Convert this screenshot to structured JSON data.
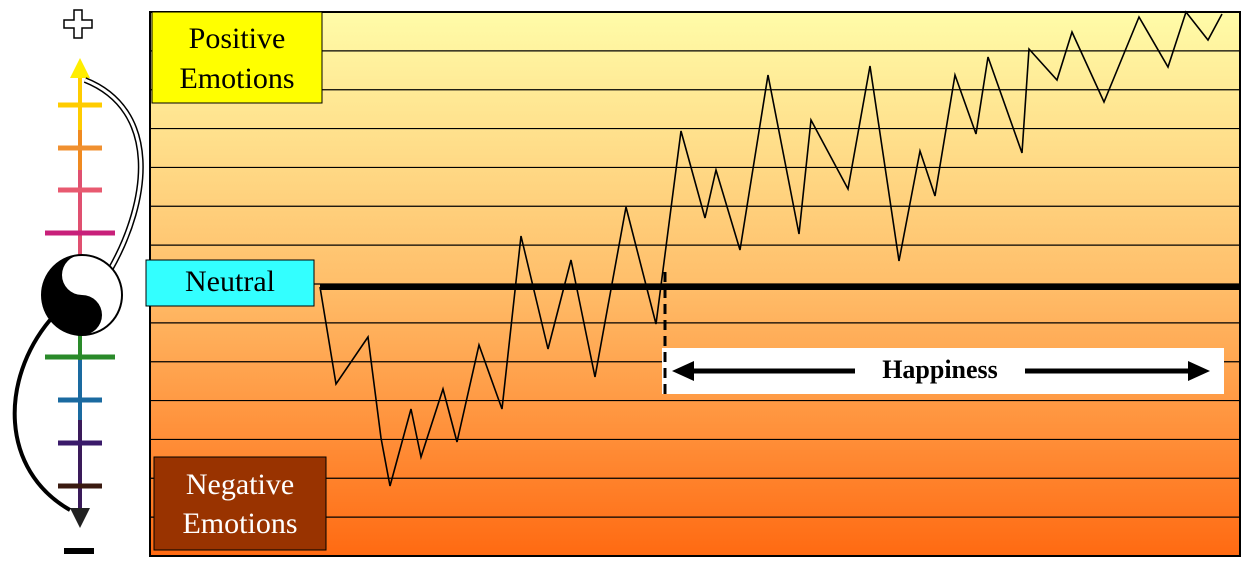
{
  "positive_emotions": [
    "Positive",
    "Emotions"
  ],
  "neutral": "Neutral",
  "negative_emotions": [
    "Negative",
    "Emotions"
  ],
  "happiness": "Happiness"
}
